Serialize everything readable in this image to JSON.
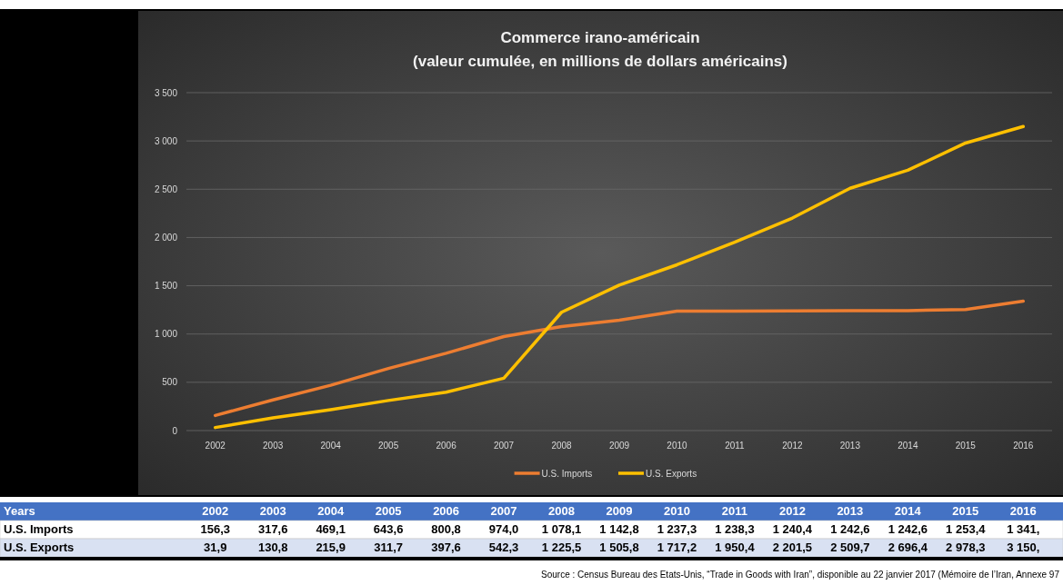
{
  "chart_data": {
    "type": "line",
    "title": "Commerce irano-américain",
    "subtitle": "(valeur cumulée, en millions de dollars américains)",
    "categories": [
      "2002",
      "2003",
      "2004",
      "2005",
      "2006",
      "2007",
      "2008",
      "2009",
      "2010",
      "2011",
      "2012",
      "2013",
      "2014",
      "2015",
      "2016"
    ],
    "series": [
      {
        "name": "U.S. Imports",
        "color": "#ed7d31",
        "values": [
          156.3,
          317.6,
          469.1,
          643.6,
          800.8,
          974.0,
          1078.1,
          1142.8,
          1237.3,
          1238.3,
          1240.4,
          1242.6,
          1242.6,
          1253.4,
          1341
        ],
        "value_labels": [
          "156,3",
          "317,6",
          "469,1",
          "643,6",
          "800,8",
          "974,0",
          "1 078,1",
          "1 142,8",
          "1 237,3",
          "1 238,3",
          "1 240,4",
          "1 242,6",
          "1 242,6",
          "1 253,4",
          "1 341,"
        ]
      },
      {
        "name": "U.S. Exports",
        "color": "#ffc000",
        "values": [
          31.9,
          130.8,
          215.9,
          311.7,
          397.6,
          542.3,
          1225.5,
          1505.8,
          1717.2,
          1950.4,
          2201.5,
          2509.7,
          2696.4,
          2978.3,
          3150
        ],
        "value_labels": [
          "31,9",
          "130,8",
          "215,9",
          "311,7",
          "397,6",
          "542,3",
          "1 225,5",
          "1 505,8",
          "1 717,2",
          "1 950,4",
          "2 201,5",
          "2 509,7",
          "2 696,4",
          "2 978,3",
          "3 150,"
        ]
      }
    ],
    "ylim": [
      0,
      3500
    ],
    "yticks": [
      0,
      500,
      {
        "value": 1000,
        "label": "1 000"
      },
      {
        "value": 1500,
        "label": "1 500"
      },
      {
        "value": 2000,
        "label": "2 000"
      },
      {
        "value": 2500,
        "label": "2 500"
      },
      {
        "value": 3000,
        "label": "3 000"
      },
      {
        "value": 3500,
        "label": "3 500"
      }
    ],
    "grid": "y",
    "legend": "bottom",
    "marker": "none",
    "line_style": "solid",
    "annotations": [
      "Years",
      "Source : Census Bureau des Etats-Unis, “Trade in Goods with Iran”, disponible au 22 janvier 2017 (Mémoire de l’Iran, Annexe 97"
    ]
  }
}
